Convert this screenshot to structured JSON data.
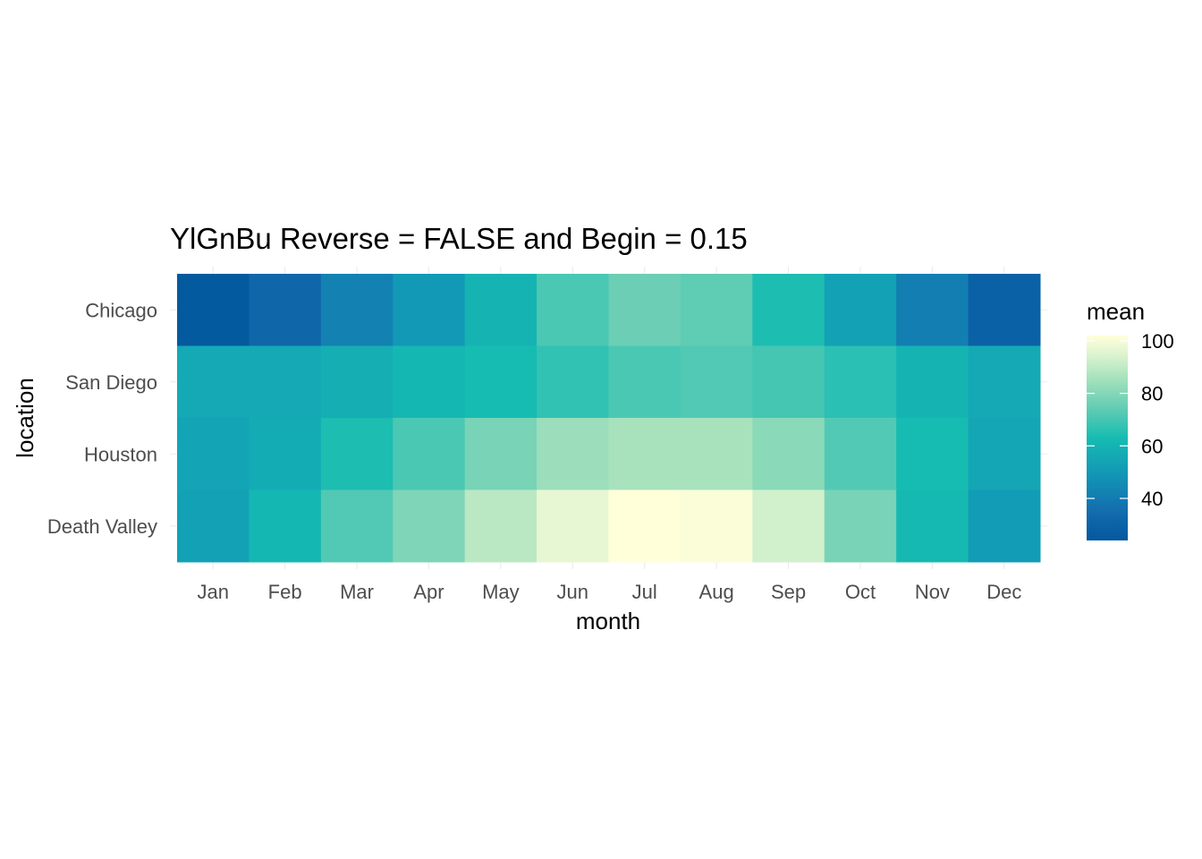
{
  "chart_data": {
    "type": "heatmap",
    "title": "YlGnBu Reverse = FALSE and Begin = 0.15",
    "xlabel": "month",
    "ylabel": "location",
    "x": [
      "Jan",
      "Feb",
      "Mar",
      "Apr",
      "May",
      "Jun",
      "Jul",
      "Aug",
      "Sep",
      "Oct",
      "Nov",
      "Dec"
    ],
    "y": [
      "Chicago",
      "San Diego",
      "Houston",
      "Death Valley"
    ],
    "values": [
      [
        25,
        32,
        42,
        50,
        60,
        71,
        76,
        74,
        64,
        53,
        41,
        29
      ],
      [
        56,
        56,
        58,
        61,
        63,
        67,
        71,
        72,
        70,
        66,
        60,
        56
      ],
      [
        54,
        57,
        64,
        71,
        78,
        84,
        86,
        86,
        81,
        72,
        63,
        55
      ],
      [
        53,
        61,
        72,
        79,
        89,
        97,
        102,
        101,
        93,
        78,
        62,
        51
      ]
    ],
    "legend": {
      "title": "mean",
      "ticks": [
        40,
        60,
        80,
        100
      ],
      "range": [
        24,
        102
      ],
      "placement": "right"
    },
    "colors": {
      "low": "#03589e",
      "high": "#ffffd9"
    },
    "grid": true
  }
}
